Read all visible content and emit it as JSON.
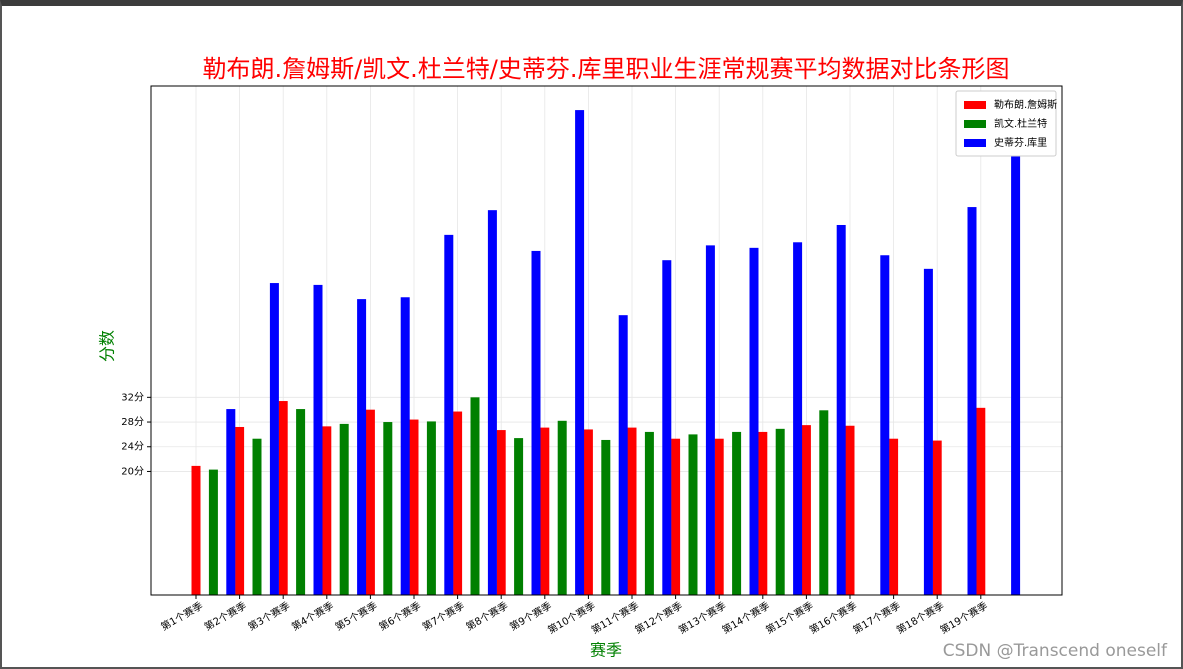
{
  "chart_data": {
    "type": "bar",
    "title": "勒布朗.詹姆斯/凯文.杜兰特/史蒂芬.库里职业生涯常规赛平均数据对比条形图",
    "xlabel": "赛季",
    "ylabel": "分数",
    "categories": [
      "第1个赛季",
      "第2个赛季",
      "第3个赛季",
      "第4个赛季",
      "第5个赛季",
      "第6个赛季",
      "第7个赛季",
      "第8个赛季",
      "第9个赛季",
      "第10个赛季",
      "第11个赛季",
      "第12个赛季",
      "第13个赛季",
      "第14个赛季",
      "第15个赛季",
      "第16个赛季",
      "第17个赛季",
      "第18个赛季",
      "第19个赛季"
    ],
    "series": [
      {
        "name": "勒布朗.詹姆斯",
        "color": "#ff0000",
        "values": [
          20.9,
          27.2,
          31.4,
          27.3,
          30.0,
          28.4,
          29.7,
          26.7,
          27.1,
          26.8,
          27.1,
          25.3,
          25.3,
          26.4,
          27.5,
          27.4,
          25.3,
          25.0,
          30.3
        ]
      },
      {
        "name": "凯文.杜兰特",
        "color": "#008000",
        "values": [
          20.3,
          25.3,
          30.1,
          27.7,
          28.0,
          28.1,
          32.0,
          25.4,
          28.2,
          25.1,
          26.4,
          26.0,
          26.4,
          26.9,
          29.9,
          null,
          null,
          null,
          null
        ]
      },
      {
        "name": "史蒂芬.库里",
        "color": "#0000ff",
        "values": [
          30.1,
          50.5,
          50.2,
          47.9,
          48.2,
          58.3,
          62.3,
          55.7,
          78.5,
          45.3,
          54.2,
          56.6,
          56.2,
          57.1,
          59.9,
          55.0,
          52.8,
          62.8,
          71.7
        ]
      }
    ],
    "ylim": [
      0,
      82.4
    ],
    "yticks": [
      {
        "value": 20,
        "label": "20分"
      },
      {
        "value": 24,
        "label": "24分"
      },
      {
        "value": 28,
        "label": "28分"
      },
      {
        "value": 32,
        "label": "32分"
      }
    ],
    "grid": true,
    "legend": "upper right",
    "title_color": "#ff0000",
    "label_color": "#008000",
    "watermark": "CSDN @Transcend oneself"
  }
}
